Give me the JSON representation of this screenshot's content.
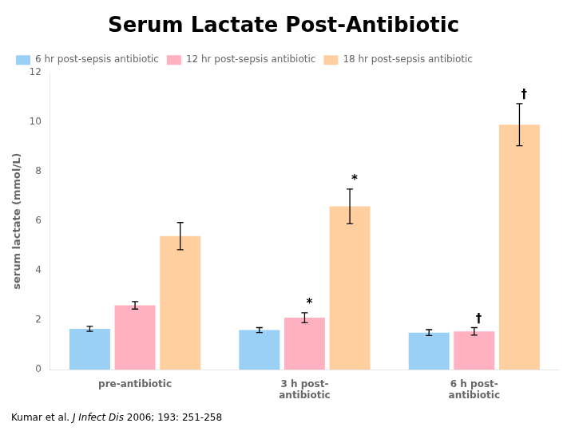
{
  "chart_data": {
    "type": "bar",
    "title": "Serum Lactate Post-Antibiotic",
    "ylabel": "serum lactate (mmol/L)",
    "categories": [
      "pre-antibiotic",
      "3 h post-\nantibiotic",
      "6 h post-\nantibiotic"
    ],
    "series": [
      {
        "name": "6 hr post-sepsis antibiotic",
        "values": [
          1.65,
          1.6,
          1.5
        ],
        "errors": [
          0.1,
          0.1,
          0.12
        ]
      },
      {
        "name": "12 hr post-sepsis antibiotic",
        "values": [
          2.6,
          2.1,
          1.55
        ],
        "errors": [
          0.15,
          0.2,
          0.15
        ]
      },
      {
        "name": "18 hr post-sepsis antibiotic",
        "values": [
          5.4,
          6.6,
          9.9
        ],
        "errors": [
          0.55,
          0.7,
          0.85
        ]
      }
    ],
    "annotations": [
      {
        "text": "*",
        "category": "3 h post-\nantibiotic",
        "series": "12 hr post-sepsis antibiotic"
      },
      {
        "text": "*",
        "category": "3 h post-\nantibiotic",
        "series": "18 hr post-sepsis antibiotic"
      },
      {
        "text": "†",
        "category": "6 h post-\nantibiotic",
        "series": "12 hr post-sepsis antibiotic"
      },
      {
        "text": "†",
        "category": "6 h post-\nantibiotic",
        "series": "18 hr post-sepsis antibiotic"
      }
    ],
    "citation": [
      "Kumar et al. ",
      "J Infect Dis",
      " 2006; 193: 251-258"
    ],
    "ylim": [
      0,
      12
    ],
    "yticks": [
      0,
      2,
      4,
      6,
      8,
      10,
      12
    ],
    "grid": false,
    "legend": "upper left"
  }
}
